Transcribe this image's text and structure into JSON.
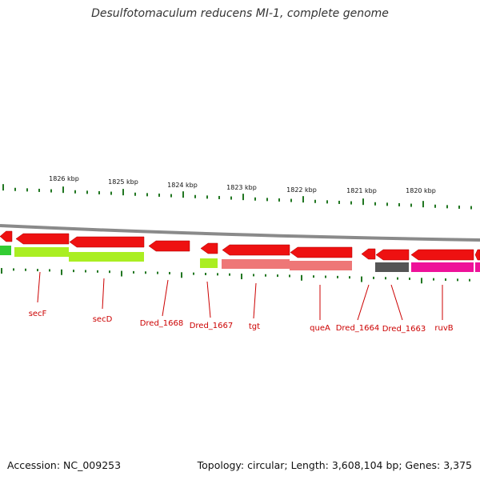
{
  "title": "Desulfotomaculum reducens MI-1, complete genome",
  "footer": {
    "accession": "Accession: NC_009253",
    "summary": "Topology: circular; Length: 3,608,104 bp; Genes: 3,375"
  },
  "colors": {
    "backbone": "#8a8a8a",
    "forward_gene": "#ee1111",
    "tick": "#227722",
    "label_red": "#cc0000",
    "cog_yellowgreen": "#aaee22",
    "cog_green": "#33cc33",
    "cog_pink": "#ee7777",
    "cog_gray": "#555555",
    "cog_magenta": "#ee1199"
  },
  "scale_labels": [
    "1826 kbp",
    "1825 kbp",
    "1824 kbp",
    "1823 kbp",
    "1822 kbp",
    "1821 kbp",
    "1820 kbp"
  ],
  "gene_labels": [
    "secF",
    "secD",
    "Dred_1668",
    "Dred_1667",
    "tgt",
    "queA",
    "Dred_1664",
    "Dred_1663",
    "ruvB"
  ],
  "legend_icons": {
    "gene": "arrow-shape",
    "cog_band": "bar-shape"
  }
}
